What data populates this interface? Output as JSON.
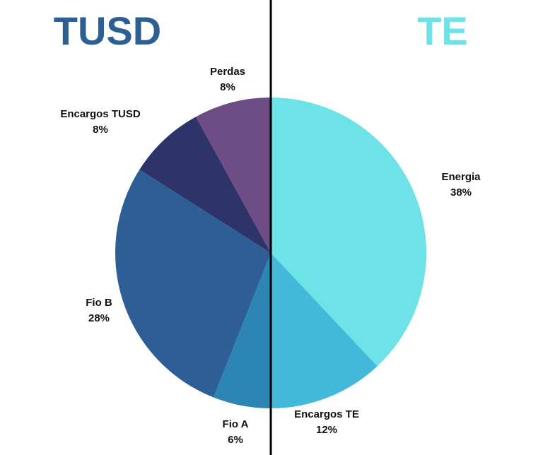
{
  "chart_data": {
    "type": "pie",
    "annotations": [
      "TUSD",
      "TE"
    ],
    "annotation_colors": [
      "#2c5f94",
      "#6de3e8"
    ],
    "categories": [
      "Energia",
      "Encargos TE",
      "Fio A",
      "Fio B",
      "Encargos TUSD",
      "Perdas"
    ],
    "values": [
      38,
      12,
      6,
      28,
      8,
      8
    ],
    "value_labels": [
      "38%",
      "12%",
      "6%",
      "28%",
      "8%",
      "8%"
    ],
    "colors": [
      "#6de3e8",
      "#44b8d8",
      "#2d85b5",
      "#2d5e96",
      "#2e336a",
      "#6e4c84"
    ]
  }
}
